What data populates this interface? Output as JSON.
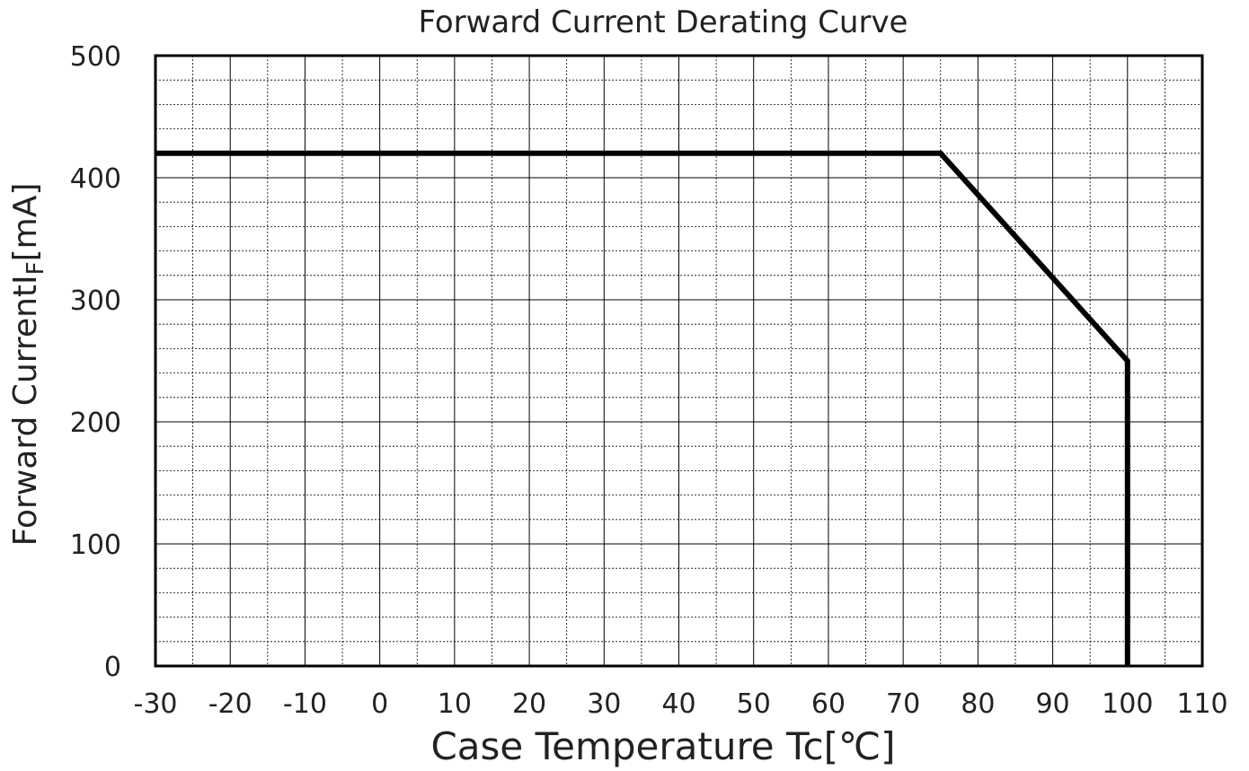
{
  "chart_data": {
    "type": "line",
    "title": "Forward Current Derating Curve",
    "xlabel": "Case Temperature Tc[℃]",
    "ylabel": {
      "main": "Forward CurrentI",
      "subscript": "F",
      "unit": "[mA]"
    },
    "xlim": [
      -30,
      110
    ],
    "ylim": [
      0,
      500
    ],
    "x_ticks": [
      -30,
      -20,
      -10,
      0,
      10,
      20,
      30,
      40,
      50,
      60,
      70,
      80,
      90,
      100,
      110
    ],
    "y_ticks": [
      0,
      100,
      200,
      300,
      400,
      500
    ],
    "grid": true,
    "grid_minor_x_step": 5,
    "grid_minor_y_step": 20,
    "series": [
      {
        "x": [
          -30,
          75,
          100,
          100
        ],
        "y": [
          420,
          420,
          250,
          0
        ],
        "color": "#000000"
      }
    ]
  },
  "colors": {
    "line": "#000000",
    "grid": "#000000",
    "axis": "#000000",
    "text": "#222222",
    "background": "#ffffff"
  }
}
